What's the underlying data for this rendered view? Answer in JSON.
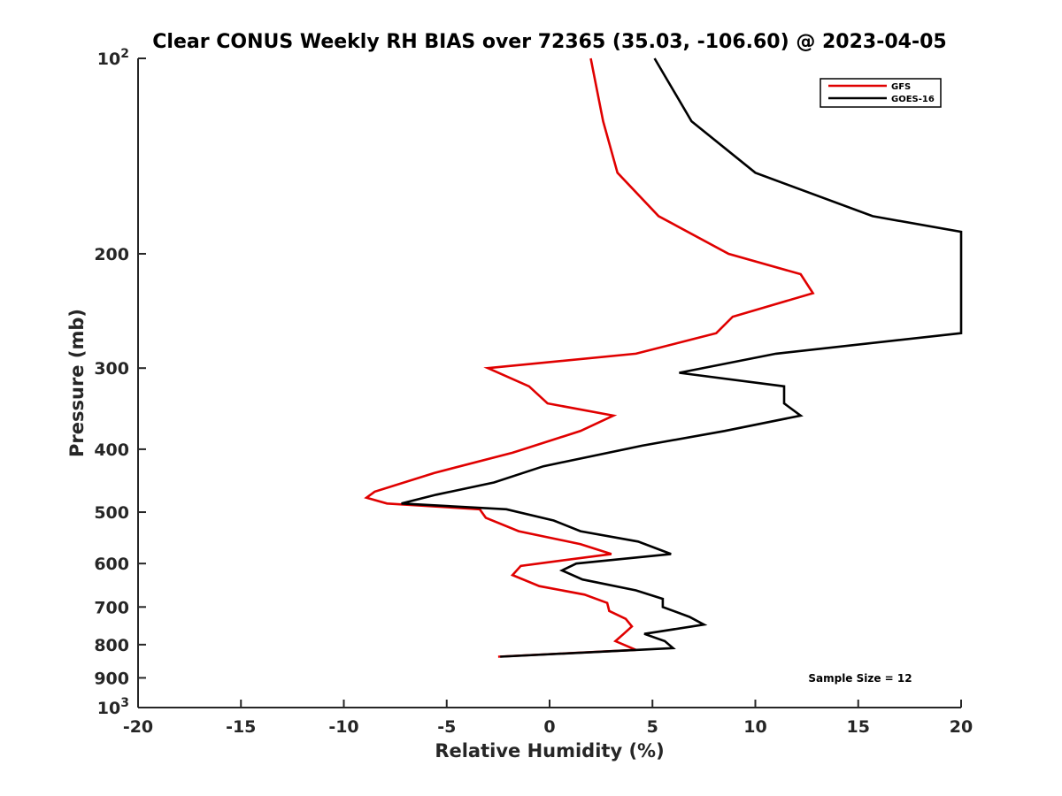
{
  "chart_data": {
    "type": "line",
    "title": "Clear CONUS Weekly RH BIAS over 72365 (35.03, -106.60) @ 2023-04-05",
    "xlabel": "Relative Humidity (%)",
    "ylabel": "Pressure (mb)",
    "xlim": [
      -20,
      20
    ],
    "ylim": [
      100,
      1000
    ],
    "y_scale": "log",
    "y_reversed": true,
    "x_ticks": [
      "-20",
      "-15",
      "-10",
      "-5",
      "0",
      "5",
      "10",
      "15",
      "20"
    ],
    "y_ticks": [
      {
        "value": 100,
        "base": "10",
        "exp": "2"
      },
      {
        "value": 200,
        "label": "200"
      },
      {
        "value": 300,
        "label": "300"
      },
      {
        "value": 400,
        "label": "400"
      },
      {
        "value": 500,
        "label": "500"
      },
      {
        "value": 600,
        "label": "600"
      },
      {
        "value": 700,
        "label": "700"
      },
      {
        "value": 800,
        "label": "800"
      },
      {
        "value": 900,
        "label": "900"
      },
      {
        "value": 1000,
        "base": "10",
        "exp": "3"
      }
    ],
    "grid": false,
    "legend_position": "top-right",
    "annotation": "Sample Size = 12",
    "series": [
      {
        "name": "GFS",
        "color": "#e00000",
        "points": [
          [
            2.0,
            100
          ],
          [
            2.6,
            125
          ],
          [
            3.3,
            150
          ],
          [
            5.3,
            175
          ],
          [
            8.7,
            200
          ],
          [
            12.2,
            215
          ],
          [
            12.8,
            230
          ],
          [
            8.9,
            250
          ],
          [
            8.1,
            265
          ],
          [
            4.2,
            285
          ],
          [
            -3.0,
            300
          ],
          [
            -1.0,
            320
          ],
          [
            -0.1,
            340
          ],
          [
            3.1,
            355
          ],
          [
            1.5,
            375
          ],
          [
            -1.8,
            405
          ],
          [
            -5.6,
            435
          ],
          [
            -8.5,
            465
          ],
          [
            -8.9,
            475
          ],
          [
            -7.9,
            485
          ],
          [
            -3.4,
            495
          ],
          [
            -3.1,
            510
          ],
          [
            -1.5,
            535
          ],
          [
            1.5,
            560
          ],
          [
            3.0,
            580
          ],
          [
            -1.4,
            605
          ],
          [
            -1.8,
            625
          ],
          [
            -0.5,
            650
          ],
          [
            1.7,
            670
          ],
          [
            2.8,
            690
          ],
          [
            2.9,
            710
          ],
          [
            3.7,
            730
          ],
          [
            4.0,
            750
          ],
          [
            3.6,
            770
          ],
          [
            3.2,
            790
          ],
          [
            4.2,
            815
          ],
          [
            -2.5,
            835
          ]
        ]
      },
      {
        "name": "GOES-16",
        "color": "#000000",
        "points": [
          [
            5.1,
            100
          ],
          [
            6.9,
            125
          ],
          [
            10.0,
            150
          ],
          [
            15.7,
            175
          ],
          [
            20.0,
            185
          ],
          [
            20.0,
            265
          ],
          [
            11.0,
            285
          ],
          [
            6.3,
            305
          ],
          [
            11.4,
            320
          ],
          [
            11.4,
            340
          ],
          [
            12.2,
            355
          ],
          [
            8.5,
            375
          ],
          [
            4.5,
            395
          ],
          [
            -0.3,
            425
          ],
          [
            -2.7,
            450
          ],
          [
            -5.5,
            470
          ],
          [
            -7.2,
            485
          ],
          [
            -2.1,
            495
          ],
          [
            0.2,
            515
          ],
          [
            1.5,
            535
          ],
          [
            4.3,
            555
          ],
          [
            5.9,
            580
          ],
          [
            1.3,
            600
          ],
          [
            0.6,
            615
          ],
          [
            1.6,
            635
          ],
          [
            4.2,
            660
          ],
          [
            5.5,
            680
          ],
          [
            5.5,
            700
          ],
          [
            6.8,
            725
          ],
          [
            7.5,
            745
          ],
          [
            4.6,
            770
          ],
          [
            5.6,
            790
          ],
          [
            6.0,
            810
          ],
          [
            -2.4,
            835
          ]
        ]
      }
    ]
  }
}
